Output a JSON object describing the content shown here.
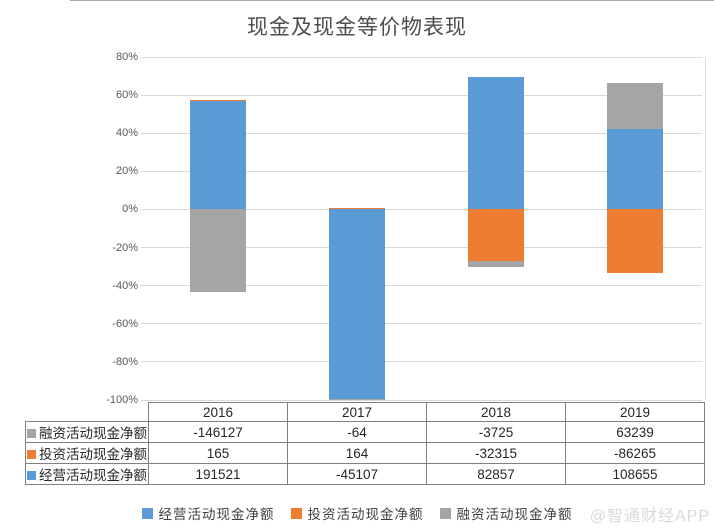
{
  "title": "现金及现金等价物表现",
  "watermark": "@智通财经APP",
  "colors": {
    "operating": "#5b9bd5",
    "investing": "#ed7d31",
    "financing": "#a5a5a5",
    "gridline": "#d9d9d9",
    "axis_text": "#595959",
    "table_border": "#808080",
    "table_text": "#262626",
    "watermark_text": "#d9d9d9"
  },
  "chart_data": {
    "type": "bar",
    "stacked": true,
    "note": "segment heights are each value as percent of the sum of absolute values per year",
    "title": "现金及现金等价物表现",
    "categories": [
      "2016",
      "2017",
      "2018",
      "2019"
    ],
    "series": [
      {
        "name": "经营活动现金净额",
        "color_key": "operating",
        "values": [
          191521,
          -45107,
          82857,
          108655
        ]
      },
      {
        "name": "投资活动现金净额",
        "color_key": "investing",
        "values": [
          165,
          164,
          -32315,
          -86265
        ]
      },
      {
        "name": "融资活动现金净额",
        "color_key": "financing",
        "values": [
          -146127,
          -64,
          -3725,
          63239
        ]
      }
    ],
    "ylim": [
      -100,
      80
    ],
    "y_tick_step": 20,
    "y_tick_labels": [
      "80%",
      "60%",
      "40%",
      "20%",
      "0%",
      "-20%",
      "-40%",
      "-60%",
      "-80%",
      "-100%"
    ],
    "grid": "horizontal-only",
    "legend_position": "bottom"
  },
  "table": {
    "header": [
      "2016",
      "2017",
      "2018",
      "2019"
    ],
    "rows": [
      {
        "label": "融资活动现金净额",
        "color_key": "financing",
        "values": [
          "-146127",
          "-64",
          "-3725",
          "63239"
        ]
      },
      {
        "label": "投资活动现金净额",
        "color_key": "investing",
        "values": [
          "165",
          "164",
          "-32315",
          "-86265"
        ]
      },
      {
        "label": "经营活动现金净额",
        "color_key": "operating",
        "values": [
          "191521",
          "-45107",
          "82857",
          "108655"
        ]
      }
    ]
  },
  "legend": [
    {
      "label": "经营活动现金净额",
      "color_key": "operating"
    },
    {
      "label": "投资活动现金净额",
      "color_key": "investing"
    },
    {
      "label": "融资活动现金净额",
      "color_key": "financing"
    }
  ]
}
